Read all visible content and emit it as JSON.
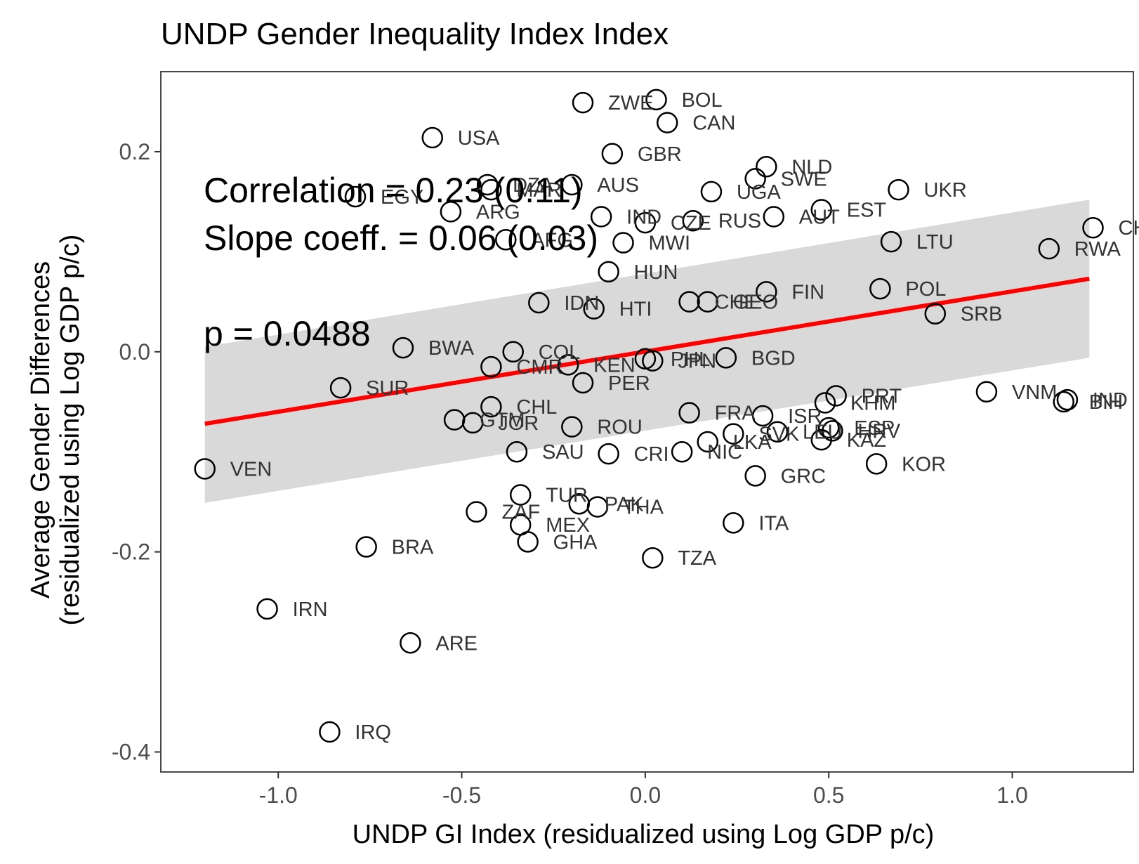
{
  "chart_data": {
    "type": "scatter",
    "title": "UNDP Gender Inequality Index Index",
    "xlabel": "UNDP GI Index (residualized using Log GDP p/c)",
    "ylabel_line1": "Average Gender Differences",
    "ylabel_line2": "(residualized using Log GDP p/c)",
    "xlim": [
      -1.32,
      1.33
    ],
    "ylim": [
      -0.42,
      0.28
    ],
    "xticks": [
      -1.0,
      -0.5,
      0.0,
      0.5,
      1.0
    ],
    "xtick_labels": [
      "-1.0",
      "-0.5",
      "0.0",
      "0.5",
      "1.0"
    ],
    "yticks": [
      -0.4,
      -0.2,
      0.0,
      0.2
    ],
    "ytick_labels": [
      "-0.4",
      "-0.2",
      "0.0",
      "0.2"
    ],
    "grid": false,
    "annotations": [
      "Correlation = 0.23 (0.11)",
      "Slope coeff. = 0.06 (0.03)",
      "",
      "p = 0.0488"
    ],
    "regression": {
      "x": [
        -1.2,
        1.21
      ],
      "y": [
        -0.072,
        0.073
      ],
      "ci_upper": [
        0.005,
        0.152
      ],
      "ci_lower": [
        -0.151,
        -0.006
      ],
      "line_color": "#ff0000",
      "band_color": "#d9d9d9"
    },
    "points": [
      {
        "label": "ZWE",
        "x": -0.17,
        "y": 0.249
      },
      {
        "label": "BOL",
        "x": 0.03,
        "y": 0.252
      },
      {
        "label": "CAN",
        "x": 0.06,
        "y": 0.229
      },
      {
        "label": "USA",
        "x": -0.58,
        "y": 0.214
      },
      {
        "label": "GBR",
        "x": -0.09,
        "y": 0.198
      },
      {
        "label": "NLD",
        "x": 0.33,
        "y": 0.185
      },
      {
        "label": "SWE",
        "x": 0.3,
        "y": 0.173
      },
      {
        "label": "UGA",
        "x": 0.18,
        "y": 0.16
      },
      {
        "label": "UKR",
        "x": 0.69,
        "y": 0.162
      },
      {
        "label": "EGY",
        "x": -0.79,
        "y": 0.155
      },
      {
        "label": "DZA",
        "x": -0.43,
        "y": 0.167
      },
      {
        "label": "MAR",
        "x": -0.42,
        "y": 0.162
      },
      {
        "label": "AUS",
        "x": -0.2,
        "y": 0.167
      },
      {
        "label": "ARG",
        "x": -0.53,
        "y": 0.14
      },
      {
        "label": "IND",
        "x": -0.12,
        "y": 0.135
      },
      {
        "label": "RUS",
        "x": 0.13,
        "y": 0.131
      },
      {
        "label": "AUT",
        "x": 0.35,
        "y": 0.135
      },
      {
        "label": "EST",
        "x": 0.48,
        "y": 0.142
      },
      {
        "label": "CZE",
        "x": -0.0,
        "y": 0.129
      },
      {
        "label": "AFG",
        "x": -0.38,
        "y": 0.112
      },
      {
        "label": "MWI",
        "x": -0.06,
        "y": 0.109
      },
      {
        "label": "LTU",
        "x": 0.67,
        "y": 0.11
      },
      {
        "label": "CHN",
        "x": 1.22,
        "y": 0.124
      },
      {
        "label": "RWA",
        "x": 1.1,
        "y": 0.103
      },
      {
        "label": "HUN",
        "x": -0.1,
        "y": 0.08
      },
      {
        "label": "IDN",
        "x": -0.29,
        "y": 0.049
      },
      {
        "label": "HTI",
        "x": -0.14,
        "y": 0.043
      },
      {
        "label": "CHE",
        "x": 0.12,
        "y": 0.05
      },
      {
        "label": "GEO",
        "x": 0.17,
        "y": 0.05
      },
      {
        "label": "FIN",
        "x": 0.33,
        "y": 0.06
      },
      {
        "label": "POL",
        "x": 0.64,
        "y": 0.063
      },
      {
        "label": "SRB",
        "x": 0.79,
        "y": 0.038
      },
      {
        "label": "BWA",
        "x": -0.66,
        "y": 0.004
      },
      {
        "label": "COL",
        "x": -0.36,
        "y": 0.0
      },
      {
        "label": "CMR",
        "x": -0.42,
        "y": -0.015
      },
      {
        "label": "KEN",
        "x": -0.21,
        "y": -0.013
      },
      {
        "label": "PHL",
        "x": -0.0,
        "y": -0.007
      },
      {
        "label": "JPN",
        "x": 0.02,
        "y": -0.009
      },
      {
        "label": "BGD",
        "x": 0.22,
        "y": -0.006
      },
      {
        "label": "SUR",
        "x": -0.83,
        "y": -0.036
      },
      {
        "label": "PER",
        "x": -0.17,
        "y": -0.031
      },
      {
        "label": "CHL",
        "x": -0.42,
        "y": -0.055
      },
      {
        "label": "PRT",
        "x": 0.52,
        "y": -0.044
      },
      {
        "label": "KHM",
        "x": 0.49,
        "y": -0.051
      },
      {
        "label": "VNM",
        "x": 0.93,
        "y": -0.04
      },
      {
        "label": "IND",
        "x": 1.15,
        "y": -0.048
      },
      {
        "label": "BIH",
        "x": 1.14,
        "y": -0.05
      },
      {
        "label": "GTM",
        "x": -0.52,
        "y": -0.068
      },
      {
        "label": "JOR",
        "x": -0.47,
        "y": -0.071
      },
      {
        "label": "ROU",
        "x": -0.2,
        "y": -0.075
      },
      {
        "label": "FRA",
        "x": 0.12,
        "y": -0.061
      },
      {
        "label": "ISR",
        "x": 0.32,
        "y": -0.064
      },
      {
        "label": "LEU",
        "x": 0.36,
        "y": -0.08
      },
      {
        "label": "ESP",
        "x": 0.5,
        "y": -0.076
      },
      {
        "label": "HRV",
        "x": 0.51,
        "y": -0.079
      },
      {
        "label": "SAU",
        "x": -0.35,
        "y": -0.1
      },
      {
        "label": "CRI",
        "x": -0.1,
        "y": -0.102
      },
      {
        "label": "NIC",
        "x": 0.1,
        "y": -0.1
      },
      {
        "label": "LKA",
        "x": 0.17,
        "y": -0.09
      },
      {
        "label": "SVK",
        "x": 0.24,
        "y": -0.082
      },
      {
        "label": "KAZ",
        "x": 0.48,
        "y": -0.088
      },
      {
        "label": "VEN",
        "x": -1.2,
        "y": -0.117
      },
      {
        "label": "GRC",
        "x": 0.3,
        "y": -0.124
      },
      {
        "label": "KOR",
        "x": 0.63,
        "y": -0.112
      },
      {
        "label": "TUR",
        "x": -0.34,
        "y": -0.143
      },
      {
        "label": "PAK",
        "x": -0.18,
        "y": -0.152
      },
      {
        "label": "THA",
        "x": -0.13,
        "y": -0.155
      },
      {
        "label": "ZAF",
        "x": -0.46,
        "y": -0.16
      },
      {
        "label": "MEX",
        "x": -0.34,
        "y": -0.173
      },
      {
        "label": "GHA",
        "x": -0.32,
        "y": -0.19
      },
      {
        "label": "ITA",
        "x": 0.24,
        "y": -0.171
      },
      {
        "label": "TZA",
        "x": 0.02,
        "y": -0.206
      },
      {
        "label": "BRA",
        "x": -0.76,
        "y": -0.195
      },
      {
        "label": "IRN",
        "x": -1.03,
        "y": -0.257
      },
      {
        "label": "ARE",
        "x": -0.64,
        "y": -0.291
      },
      {
        "label": "IRQ",
        "x": -0.86,
        "y": -0.38
      }
    ]
  }
}
